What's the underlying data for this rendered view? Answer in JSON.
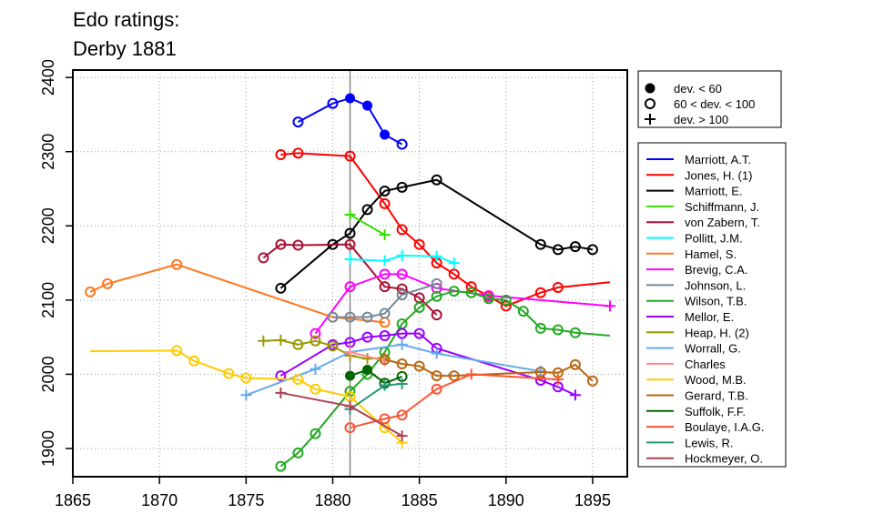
{
  "chart_data": {
    "type": "line",
    "title_lines": [
      "Edo ratings:",
      "Derby 1881"
    ],
    "xlabel": "",
    "ylabel": "",
    "xlim": [
      1865,
      1897
    ],
    "ylim": [
      1862,
      2410
    ],
    "xticks": [
      1865,
      1870,
      1875,
      1880,
      1885,
      1890,
      1895
    ],
    "yticks": [
      1900,
      2000,
      2100,
      2200,
      2300,
      2400
    ],
    "event_year": 1881,
    "grid": true,
    "marker_legend": [
      {
        "marker": "filled",
        "label": "dev. < 60"
      },
      {
        "marker": "open",
        "label": "60 < dev. < 100"
      },
      {
        "marker": "plus",
        "label": "dev. > 100"
      }
    ],
    "series": [
      {
        "name": "Marriott, A.T.",
        "color": "#0000ff",
        "points": [
          [
            1878,
            2340,
            "o"
          ],
          [
            1880,
            2365,
            "o"
          ],
          [
            1881,
            2372,
            "f"
          ],
          [
            1882,
            2362,
            "f"
          ],
          [
            1883,
            2323,
            "f"
          ],
          [
            1884,
            2310,
            "o"
          ]
        ]
      },
      {
        "name": "Jones, H. (1)",
        "color": "#ff0000",
        "points": [
          [
            1877,
            2296,
            "o"
          ],
          [
            1878,
            2298,
            "o"
          ],
          [
            1881,
            2294,
            "o"
          ],
          [
            1883,
            2230,
            "o"
          ],
          [
            1884,
            2195,
            "o"
          ],
          [
            1885,
            2175,
            "o"
          ],
          [
            1886,
            2150,
            "o"
          ],
          [
            1887,
            2135,
            "o"
          ],
          [
            1888,
            2118,
            "o"
          ],
          [
            1889,
            2105,
            "o"
          ],
          [
            1890,
            2092,
            "o"
          ],
          [
            1892,
            2110,
            "o"
          ],
          [
            1893,
            2117,
            "o"
          ],
          [
            1896,
            2124,
            "n"
          ]
        ]
      },
      {
        "name": "Marriott, E.",
        "color": "#000000",
        "points": [
          [
            1877,
            2116,
            "o"
          ],
          [
            1880,
            2175,
            "o"
          ],
          [
            1881,
            2190,
            "o"
          ],
          [
            1882,
            2222,
            "o"
          ],
          [
            1883,
            2247,
            "o"
          ],
          [
            1884,
            2252,
            "o"
          ],
          [
            1886,
            2262,
            "o"
          ],
          [
            1892,
            2175,
            "o"
          ],
          [
            1893,
            2168,
            "o"
          ],
          [
            1894,
            2172,
            "o"
          ],
          [
            1895,
            2168,
            "o"
          ]
        ]
      },
      {
        "name": "Schiffmann, J.",
        "color": "#33dd00",
        "points": [
          [
            1881,
            2215,
            "p"
          ],
          [
            1883,
            2188,
            "p"
          ]
        ]
      },
      {
        "name": "von Zabern, T.",
        "color": "#aa1133",
        "points": [
          [
            1876,
            2157,
            "o"
          ],
          [
            1877,
            2175,
            "o"
          ],
          [
            1878,
            2174,
            "o"
          ],
          [
            1881,
            2175,
            "o"
          ],
          [
            1883,
            2118,
            "o"
          ],
          [
            1884,
            2115,
            "o"
          ],
          [
            1885,
            2103,
            "o"
          ],
          [
            1886,
            2080,
            "o"
          ]
        ]
      },
      {
        "name": "Pollitt, J.M.",
        "color": "#00ffff",
        "points": [
          [
            1881,
            2155,
            "p"
          ],
          [
            1883,
            2153,
            "p"
          ],
          [
            1884,
            2160,
            "p"
          ],
          [
            1886,
            2159,
            "p"
          ],
          [
            1887,
            2150,
            "p"
          ]
        ]
      },
      {
        "name": "Hamel, S.",
        "color": "#ff7722",
        "points": [
          [
            1866,
            2111,
            "o"
          ],
          [
            1867,
            2122,
            "o"
          ],
          [
            1871,
            2148,
            "o"
          ],
          [
            1880,
            2077,
            "o"
          ],
          [
            1883,
            2070,
            "o"
          ]
        ]
      },
      {
        "name": "Brevig, C.A.",
        "color": "#ff00ff",
        "points": [
          [
            1879,
            2055,
            "o"
          ],
          [
            1881,
            2118,
            "o"
          ],
          [
            1883,
            2135,
            "o"
          ],
          [
            1884,
            2135,
            "o"
          ],
          [
            1886,
            2116,
            "o"
          ],
          [
            1889,
            2106,
            "o"
          ],
          [
            1896,
            2092,
            "p"
          ]
        ]
      },
      {
        "name": "Johnson, L.",
        "color": "#778899",
        "points": [
          [
            1880,
            2077,
            "o"
          ],
          [
            1881,
            2077,
            "o"
          ],
          [
            1882,
            2077,
            "o"
          ],
          [
            1883,
            2082,
            "o"
          ],
          [
            1884,
            2107,
            "o"
          ],
          [
            1886,
            2122,
            "o"
          ]
        ]
      },
      {
        "name": "Wilson, T.B.",
        "color": "#22aa22",
        "points": [
          [
            1877,
            1876,
            "o"
          ],
          [
            1878,
            1894,
            "o"
          ],
          [
            1879,
            1920,
            "o"
          ],
          [
            1881,
            1977,
            "o"
          ],
          [
            1882,
            2000,
            "o"
          ],
          [
            1883,
            2030,
            "o"
          ],
          [
            1884,
            2068,
            "o"
          ],
          [
            1885,
            2090,
            "o"
          ],
          [
            1886,
            2105,
            "o"
          ],
          [
            1887,
            2112,
            "o"
          ],
          [
            1888,
            2110,
            "o"
          ],
          [
            1889,
            2102,
            "o"
          ],
          [
            1890,
            2100,
            "o"
          ],
          [
            1891,
            2085,
            "o"
          ],
          [
            1892,
            2062,
            "o"
          ],
          [
            1893,
            2060,
            "o"
          ],
          [
            1894,
            2056,
            "o"
          ],
          [
            1896,
            2052,
            "n"
          ]
        ]
      },
      {
        "name": "Mellor, E.",
        "color": "#9900ff",
        "points": [
          [
            1877,
            1998,
            "o"
          ],
          [
            1880,
            2040,
            "o"
          ],
          [
            1881,
            2043,
            "o"
          ],
          [
            1882,
            2050,
            "o"
          ],
          [
            1883,
            2052,
            "o"
          ],
          [
            1884,
            2055,
            "o"
          ],
          [
            1885,
            2055,
            "o"
          ],
          [
            1886,
            2035,
            "o"
          ],
          [
            1892,
            1992,
            "o"
          ],
          [
            1893,
            1983,
            "o"
          ],
          [
            1894,
            1972,
            "p"
          ]
        ]
      },
      {
        "name": "Heap, H. (2)",
        "color": "#999900",
        "points": [
          [
            1876,
            2045,
            "p"
          ],
          [
            1877,
            2046,
            "p"
          ],
          [
            1878,
            2040,
            "o"
          ],
          [
            1879,
            2045,
            "o"
          ],
          [
            1880,
            2038,
            "o"
          ],
          [
            1881,
            2025,
            "p"
          ],
          [
            1882,
            2021,
            "p"
          ],
          [
            1883,
            2022,
            "p"
          ]
        ]
      },
      {
        "name": "Worrall, G.",
        "color": "#66aaee",
        "points": [
          [
            1875,
            1972,
            "p"
          ],
          [
            1879,
            2007,
            "p"
          ],
          [
            1881,
            2030,
            "p"
          ],
          [
            1884,
            2040,
            "p"
          ],
          [
            1886,
            2028,
            "p"
          ],
          [
            1892,
            2004,
            "p"
          ]
        ]
      },
      {
        "name": "Charles",
        "color": "#ff8888",
        "points": [
          [
            1881,
            2030,
            "p"
          ],
          [
            1883,
            2018,
            "p"
          ]
        ]
      },
      {
        "name": "Wood, M.B.",
        "color": "#ffcc00",
        "points": [
          [
            1866,
            2031,
            "n"
          ],
          [
            1871,
            2032,
            "o"
          ],
          [
            1872,
            2018,
            "o"
          ],
          [
            1874,
            2001,
            "o"
          ],
          [
            1875,
            1995,
            "o"
          ],
          [
            1878,
            1993,
            "o"
          ],
          [
            1879,
            1980,
            "o"
          ],
          [
            1881,
            1970,
            "o"
          ],
          [
            1883,
            1928,
            "o"
          ],
          [
            1884,
            1908,
            "p"
          ]
        ]
      },
      {
        "name": "Gerard, T.B.",
        "color": "#bb6611",
        "points": [
          [
            1883,
            2020,
            "o"
          ],
          [
            1884,
            2014,
            "o"
          ],
          [
            1885,
            2011,
            "o"
          ],
          [
            1886,
            1998,
            "o"
          ],
          [
            1887,
            1998,
            "o"
          ],
          [
            1892,
            2003,
            "o"
          ],
          [
            1893,
            2002,
            "o"
          ],
          [
            1894,
            2013,
            "o"
          ],
          [
            1895,
            1991,
            "o"
          ]
        ]
      },
      {
        "name": "Suffolk, F.F.",
        "color": "#006600",
        "points": [
          [
            1881,
            1998,
            "f"
          ],
          [
            1882,
            2006,
            "f"
          ],
          [
            1883,
            1988,
            "o"
          ],
          [
            1884,
            1997,
            "o"
          ]
        ]
      },
      {
        "name": "Boulaye, I.A.G.",
        "color": "#ff5533",
        "points": [
          [
            1881,
            1928,
            "o"
          ],
          [
            1883,
            1940,
            "o"
          ],
          [
            1884,
            1945,
            "o"
          ],
          [
            1886,
            1980,
            "o"
          ],
          [
            1888,
            2000,
            "p"
          ],
          [
            1893,
            1993,
            "p"
          ]
        ]
      },
      {
        "name": "Lewis, R.",
        "color": "#229977",
        "points": [
          [
            1881,
            1953,
            "p"
          ],
          [
            1883,
            1985,
            "p"
          ],
          [
            1884,
            1987,
            "p"
          ]
        ]
      },
      {
        "name": "Hockmeyer, O.",
        "color": "#aa4455",
        "points": [
          [
            1877,
            1975,
            "p"
          ],
          [
            1881,
            1957,
            "p"
          ],
          [
            1884,
            1917,
            "p"
          ]
        ]
      }
    ]
  }
}
